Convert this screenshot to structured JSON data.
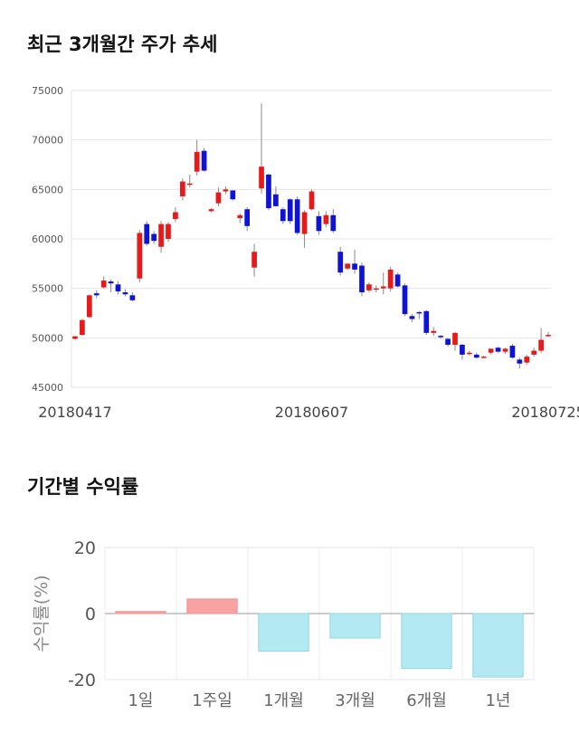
{
  "titles": {
    "price": "최근 3개월간 주가 추세",
    "returns": "기간별 수익률"
  },
  "colors": {
    "up": "#e8191a",
    "down": "#0f13d6",
    "pos_bar": "#f7a3a3",
    "neg_bar": "#b3e9f3"
  },
  "chart_data": [
    {
      "type": "candlestick",
      "title": "최근 3개월간 주가 추세",
      "ylim": [
        45000,
        75000
      ],
      "yticks": [
        45000,
        50000,
        55000,
        60000,
        65000,
        70000,
        75000
      ],
      "x_labels": [
        {
          "index": 0,
          "text": "20180417"
        },
        {
          "index": 33,
          "text": "20180607"
        },
        {
          "index": 66,
          "text": "20180725"
        }
      ],
      "grid": true,
      "candles": [
        [
          49900,
          50200,
          49800,
          50150
        ],
        [
          50300,
          51900,
          50200,
          51800
        ],
        [
          52100,
          54400,
          52000,
          54300
        ],
        [
          54500,
          54800,
          54000,
          54300
        ],
        [
          55100,
          56200,
          55000,
          55800
        ],
        [
          55700,
          55900,
          54600,
          55500
        ],
        [
          55400,
          55700,
          54400,
          54700
        ],
        [
          54600,
          54900,
          54200,
          54400
        ],
        [
          54300,
          54600,
          53700,
          53800
        ],
        [
          56000,
          60900,
          55600,
          60600
        ],
        [
          61500,
          61800,
          59300,
          59500
        ],
        [
          60500,
          60800,
          59500,
          59800
        ],
        [
          59200,
          61800,
          58600,
          61500
        ],
        [
          60000,
          61700,
          59700,
          61500
        ],
        [
          62000,
          63200,
          61700,
          62700
        ],
        [
          64300,
          66100,
          63900,
          65800
        ],
        [
          65500,
          66500,
          65200,
          65600
        ],
        [
          66800,
          70000,
          66400,
          68800
        ],
        [
          68900,
          69200,
          66800,
          66900
        ],
        [
          62800,
          63100,
          62700,
          63000
        ],
        [
          63600,
          65200,
          63300,
          64700
        ],
        [
          64800,
          65300,
          64500,
          65000
        ],
        [
          64900,
          64900,
          63900,
          64000
        ],
        [
          62100,
          62600,
          61600,
          62400
        ],
        [
          63000,
          63200,
          60800,
          61300
        ],
        [
          57100,
          59500,
          56200,
          58700
        ],
        [
          65100,
          73700,
          64600,
          67300
        ],
        [
          66500,
          66600,
          62900,
          63100
        ],
        [
          64500,
          65300,
          63400,
          63300
        ],
        [
          63000,
          63200,
          61500,
          61800
        ],
        [
          64000,
          64100,
          61500,
          61800
        ],
        [
          64000,
          64300,
          60400,
          60600
        ],
        [
          60500,
          62900,
          59100,
          62700
        ],
        [
          63000,
          65000,
          62900,
          64800
        ],
        [
          62300,
          62800,
          60400,
          60800
        ],
        [
          61500,
          62800,
          61200,
          62400
        ],
        [
          62400,
          63000,
          60600,
          60800
        ],
        [
          58700,
          59200,
          56300,
          56600
        ],
        [
          57000,
          57300,
          56900,
          57500
        ],
        [
          57500,
          58900,
          56500,
          56900
        ],
        [
          57300,
          57600,
          54200,
          54600
        ],
        [
          54800,
          55600,
          54600,
          55400
        ],
        [
          54900,
          55300,
          54600,
          55000
        ],
        [
          55000,
          56600,
          54400,
          55200
        ],
        [
          55000,
          57200,
          54700,
          56900
        ],
        [
          56400,
          56600,
          55100,
          55200
        ],
        [
          55300,
          55500,
          52200,
          52400
        ],
        [
          52200,
          52400,
          51600,
          51900
        ],
        [
          52600,
          52700,
          51900,
          52500
        ],
        [
          52700,
          52800,
          50300,
          50500
        ],
        [
          50500,
          51100,
          50200,
          50700
        ],
        [
          50200,
          50300,
          49900,
          50100
        ],
        [
          49900,
          50000,
          49100,
          49300
        ],
        [
          49300,
          50600,
          48700,
          50500
        ],
        [
          49300,
          49400,
          47800,
          48300
        ],
        [
          48400,
          48700,
          48200,
          48500
        ],
        [
          48300,
          48500,
          47900,
          48000
        ],
        [
          48000,
          48200,
          48000,
          48100
        ],
        [
          48500,
          48900,
          48300,
          48900
        ],
        [
          49000,
          49100,
          48500,
          48600
        ],
        [
          48600,
          49000,
          48400,
          48900
        ],
        [
          49200,
          49400,
          47900,
          48000
        ],
        [
          47800,
          48000,
          46900,
          47400
        ],
        [
          47500,
          48300,
          47300,
          48100
        ],
        [
          48300,
          49000,
          48100,
          48700
        ],
        [
          48700,
          51000,
          48500,
          49800
        ],
        [
          50200,
          50600,
          50100,
          50300
        ]
      ]
    },
    {
      "type": "bar",
      "title": "기간별 수익률",
      "ylabel": "수익률(%)",
      "categories": [
        "1일",
        "1주일",
        "1개월",
        "3개월",
        "6개월",
        "1년"
      ],
      "values": [
        0.6,
        4.4,
        -11.4,
        -7.4,
        -16.6,
        -19.2
      ],
      "ylim": [
        -20,
        20
      ],
      "yticks": [
        20,
        0,
        -20
      ],
      "grid": true
    }
  ]
}
